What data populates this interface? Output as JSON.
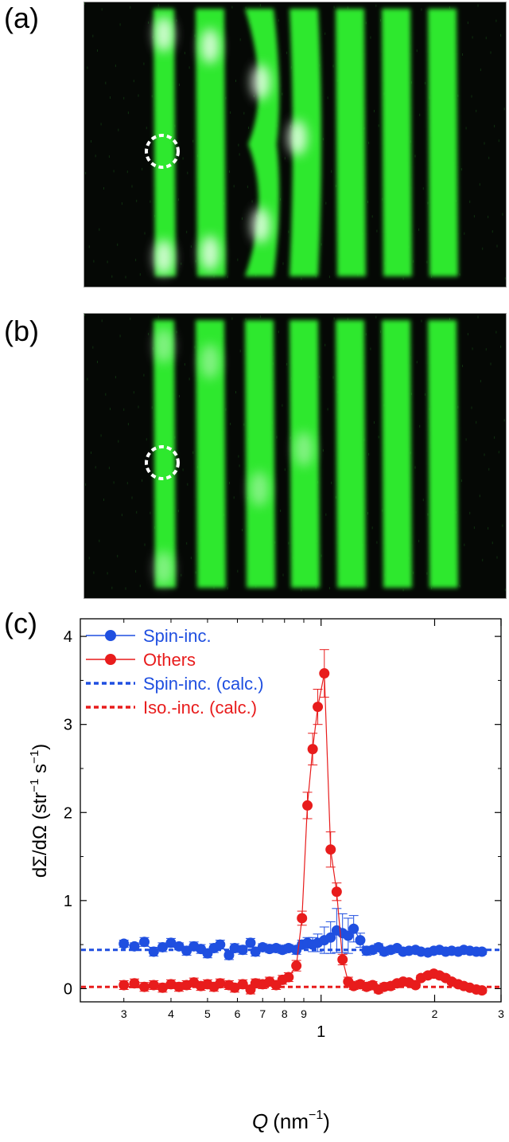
{
  "panels": {
    "a": {
      "label": "(a)"
    },
    "b": {
      "label": "(b)"
    },
    "c": {
      "label": "(c)"
    }
  },
  "micrograph_a": {
    "stripes": 7,
    "color": "#2ee82e",
    "annotation": "dashed-circle"
  },
  "micrograph_b": {
    "stripes": 7,
    "color": "#2ee82e",
    "annotation": "dashed-circle"
  },
  "chart_data": {
    "type": "scatter",
    "xlabel_symbol": "Q",
    "xlabel_unit": "(nm",
    "xlabel_exp": "−1",
    "xlabel_close": ")",
    "ylabel_main": "dΣ/dΩ (str",
    "ylabel_exp1": "−1",
    "ylabel_mid": " s",
    "ylabel_exp2": "−1",
    "ylabel_close": ")",
    "xscale": "log",
    "xlim": [
      0.23,
      3
    ],
    "ylim": [
      -0.15,
      4.2
    ],
    "y_ticks": [
      "0",
      "1",
      "2",
      "3",
      "4"
    ],
    "x_major_ticks": [
      "1",
      "2",
      "3"
    ],
    "x_minor_ticks": [
      "3",
      "4",
      "5",
      "6",
      "7",
      "8",
      "9"
    ],
    "legend_position": "top-left",
    "colors": {
      "spin": "#1f4fe0",
      "others": "#e81c1c"
    },
    "series": [
      {
        "name": "Spin-inc.",
        "style": "marker-line",
        "x": [
          0.3,
          0.32,
          0.34,
          0.36,
          0.38,
          0.4,
          0.42,
          0.44,
          0.46,
          0.48,
          0.5,
          0.52,
          0.54,
          0.57,
          0.59,
          0.62,
          0.65,
          0.67,
          0.7,
          0.73,
          0.76,
          0.79,
          0.82,
          0.86,
          0.89,
          0.92,
          0.95,
          0.98,
          1.02,
          1.06,
          1.1,
          1.14,
          1.18,
          1.22,
          1.27,
          1.32,
          1.37,
          1.42,
          1.47,
          1.53,
          1.59,
          1.65,
          1.71,
          1.78,
          1.84,
          1.92,
          1.99,
          2.06,
          2.14,
          2.22,
          2.31,
          2.39,
          2.48,
          2.58,
          2.67
        ],
        "y": [
          0.51,
          0.48,
          0.53,
          0.42,
          0.47,
          0.52,
          0.48,
          0.43,
          0.48,
          0.45,
          0.4,
          0.46,
          0.5,
          0.38,
          0.46,
          0.44,
          0.52,
          0.42,
          0.47,
          0.45,
          0.46,
          0.44,
          0.46,
          0.44,
          0.5,
          0.52,
          0.5,
          0.52,
          0.55,
          0.58,
          0.66,
          0.63,
          0.6,
          0.68,
          0.55,
          0.43,
          0.44,
          0.47,
          0.42,
          0.44,
          0.46,
          0.42,
          0.43,
          0.44,
          0.42,
          0.41,
          0.43,
          0.44,
          0.42,
          0.43,
          0.42,
          0.44,
          0.43,
          0.42,
          0.42
        ],
        "err": [
          0.04,
          0.04,
          0.05,
          0.05,
          0.05,
          0.05,
          0.04,
          0.05,
          0.05,
          0.05,
          0.05,
          0.05,
          0.05,
          0.05,
          0.05,
          0.05,
          0.05,
          0.05,
          0.04,
          0.04,
          0.04,
          0.04,
          0.04,
          0.05,
          0.05,
          0.06,
          0.08,
          0.1,
          0.15,
          0.18,
          0.25,
          0.22,
          0.2,
          0.15,
          0.08,
          0.05,
          0.04,
          0.04,
          0.04,
          0.04,
          0.03,
          0.03,
          0.03,
          0.03,
          0.03,
          0.03,
          0.03,
          0.03,
          0.03,
          0.03,
          0.03,
          0.03,
          0.03,
          0.03,
          0.03
        ]
      },
      {
        "name": "Others",
        "style": "marker-line",
        "x": [
          0.3,
          0.32,
          0.34,
          0.36,
          0.38,
          0.4,
          0.42,
          0.44,
          0.46,
          0.48,
          0.5,
          0.52,
          0.54,
          0.57,
          0.59,
          0.62,
          0.65,
          0.67,
          0.7,
          0.73,
          0.76,
          0.79,
          0.82,
          0.86,
          0.89,
          0.92,
          0.95,
          0.98,
          1.02,
          1.06,
          1.1,
          1.14,
          1.18,
          1.22,
          1.27,
          1.32,
          1.37,
          1.42,
          1.47,
          1.53,
          1.59,
          1.65,
          1.71,
          1.78,
          1.84,
          1.92,
          1.99,
          2.06,
          2.14,
          2.22,
          2.31,
          2.39,
          2.48,
          2.58,
          2.67
        ],
        "y": [
          0.04,
          0.06,
          0.02,
          0.04,
          0.01,
          0.05,
          0.02,
          0.04,
          0.07,
          0.03,
          0.05,
          0.02,
          0.06,
          0.04,
          0.01,
          0.05,
          -0.01,
          0.06,
          0.05,
          0.08,
          0.04,
          0.1,
          0.13,
          0.26,
          0.8,
          2.08,
          2.72,
          3.2,
          3.58,
          1.58,
          1.1,
          0.33,
          0.08,
          0.03,
          0.05,
          0.02,
          0.04,
          -0.01,
          0.02,
          0.03,
          0.06,
          0.08,
          0.07,
          0.04,
          0.12,
          0.15,
          0.17,
          0.15,
          0.12,
          0.08,
          0.05,
          0.03,
          0.01,
          -0.01,
          -0.02
        ],
        "err": [
          0.05,
          0.05,
          0.05,
          0.05,
          0.05,
          0.05,
          0.05,
          0.05,
          0.05,
          0.05,
          0.05,
          0.05,
          0.05,
          0.05,
          0.05,
          0.05,
          0.05,
          0.05,
          0.05,
          0.05,
          0.05,
          0.05,
          0.05,
          0.06,
          0.08,
          0.15,
          0.18,
          0.2,
          0.27,
          0.2,
          0.1,
          0.06,
          0.05,
          0.04,
          0.04,
          0.04,
          0.04,
          0.04,
          0.04,
          0.04,
          0.03,
          0.03,
          0.03,
          0.03,
          0.03,
          0.03,
          0.03,
          0.03,
          0.03,
          0.03,
          0.03,
          0.03,
          0.03,
          0.03,
          0.03
        ]
      },
      {
        "name": "Spin-inc. (calc.)",
        "style": "dashed",
        "y": 0.44
      },
      {
        "name": "Iso.-inc. (calc.)",
        "style": "dashed",
        "y": 0.02
      }
    ]
  }
}
